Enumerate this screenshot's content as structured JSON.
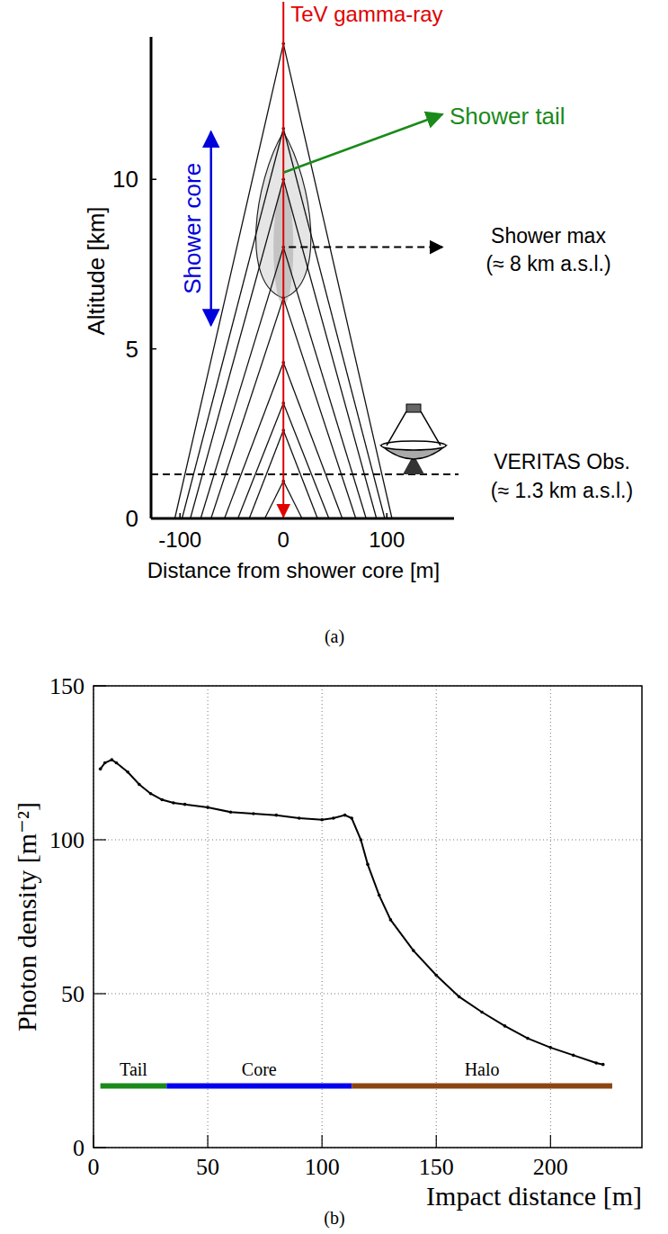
{
  "figure": {
    "captions": [
      "(a)",
      "(b)"
    ]
  },
  "diagram": {
    "title": "TeV gamma-ray",
    "x_label": "Distance from shower core [m]",
    "y_label": "Altitude [km]",
    "xlim": [
      -128,
      165
    ],
    "ylim": [
      0,
      14.2
    ],
    "xticks": [
      -100,
      0,
      100
    ],
    "yticks": [
      0,
      5,
      10
    ],
    "emission_points": [
      {
        "altitude": 14,
        "ground_radius": 105
      },
      {
        "altitude": 11.5,
        "ground_radius": 98
      },
      {
        "altitude": 10,
        "ground_radius": 90
      },
      {
        "altitude": 8,
        "ground_radius": 80
      },
      {
        "altitude": 6.5,
        "ground_radius": 70
      },
      {
        "altitude": 4.6,
        "ground_radius": 57
      },
      {
        "altitude": 3.4,
        "ground_radius": 44
      },
      {
        "altitude": 2.6,
        "ground_radius": 33
      },
      {
        "altitude": 1.1,
        "ground_radius": 18
      }
    ],
    "shower_core": {
      "label": "Shower core",
      "range": [
        5.7,
        11.4
      ]
    },
    "shower_tail": {
      "label": "Shower tail",
      "altitude": 10.2
    },
    "shower_max": {
      "label": "Shower max",
      "note": "(≈ 8 km a.s.l.)",
      "altitude": 8
    },
    "observatory": {
      "label": "VERITAS Obs.",
      "note": "(≈ 1.3 km a.s.l.)",
      "altitude": 1.3
    }
  },
  "chart_data": {
    "type": "line",
    "x_label": "Impact distance [m]",
    "y_label": "Photon density [m⁻²]",
    "xlim": [
      0,
      240
    ],
    "ylim": [
      0,
      150
    ],
    "xticks": [
      0,
      50,
      100,
      150,
      200
    ],
    "yticks": [
      0,
      50,
      100,
      150
    ],
    "grid": true,
    "series": [
      {
        "name": "Photon density",
        "color": "#000000",
        "marker": "dot",
        "x": [
          3,
          5,
          8,
          10,
          15,
          20,
          25,
          30,
          35,
          40,
          50,
          60,
          70,
          80,
          90,
          100,
          105,
          110,
          113,
          117,
          120,
          125,
          130,
          140,
          150,
          160,
          170,
          180,
          190,
          200,
          210,
          220,
          223
        ],
        "values": [
          123,
          125,
          126,
          125,
          122,
          118,
          115,
          113,
          112,
          111.5,
          110.5,
          109,
          108.5,
          108,
          107,
          106.5,
          107,
          108,
          107,
          100,
          92,
          82,
          74,
          64,
          56,
          49,
          44,
          39.5,
          35.5,
          32.5,
          30,
          27.5,
          27
        ]
      }
    ],
    "regions": [
      {
        "name": "Tail",
        "start": 3,
        "end": 32,
        "y": 20,
        "color": "#1a8a1a"
      },
      {
        "name": "Core",
        "start": 32,
        "end": 113,
        "y": 20,
        "color": "#0000ee"
      },
      {
        "name": "Halo",
        "start": 113,
        "end": 227,
        "y": 20,
        "color": "#8b4513"
      }
    ]
  }
}
